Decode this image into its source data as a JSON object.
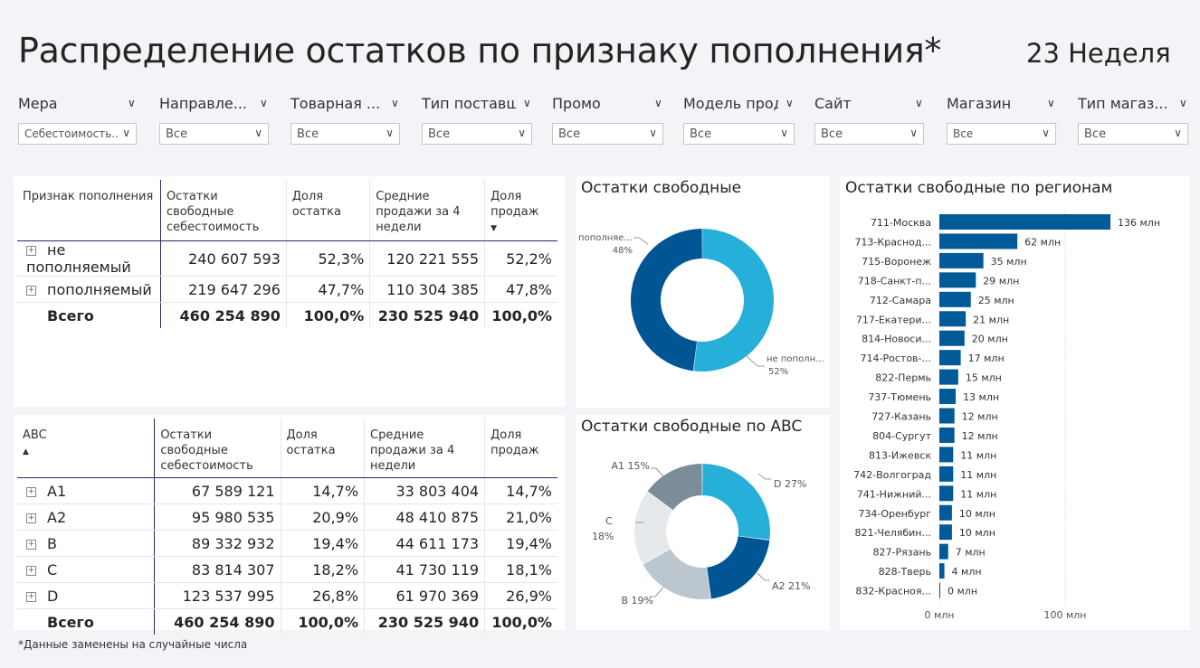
{
  "title": "Распределение остатков по признаку пополнения*",
  "week": "23 Неделя",
  "footnote": "*Данные заменены на случайные числа",
  "filters": [
    {
      "label": "Мера",
      "value": "Себестоимость..."
    },
    {
      "label": "Направле...",
      "value": "Все"
    },
    {
      "label": "Товарная ...",
      "value": "Все"
    },
    {
      "label": "Тип поставщ...",
      "value": "Все"
    },
    {
      "label": "Промо",
      "value": "Все"
    },
    {
      "label": "Модель прод...",
      "value": "Все"
    },
    {
      "label": "Сайт",
      "value": "Все"
    },
    {
      "label": "Магазин",
      "value": "Все"
    },
    {
      "label": "Тип магаз...",
      "value": "Все"
    }
  ],
  "table1": {
    "headers": [
      "Признак пополнения",
      "Остатки свободные себестоимость",
      "Доля остатка",
      "Средние продажи за 4 недели",
      "Доля продаж"
    ],
    "rows": [
      {
        "label": "не пополняемый",
        "ost": "240 607 593",
        "dost": "52,3%",
        "sp": "120 221 555",
        "dsp": "52,2%"
      },
      {
        "label": "пополняемый",
        "ost": "219 647 296",
        "dost": "47,7%",
        "sp": "110 304 385",
        "dsp": "47,8%"
      }
    ],
    "total": {
      "label": "Всего",
      "ost": "460 254 890",
      "dost": "100,0%",
      "sp": "230 525 940",
      "dsp": "100,0%"
    }
  },
  "table2": {
    "headers": [
      "ABC",
      "Остатки свободные себестоимость",
      "Доля остатка",
      "Средние продажи за 4 недели",
      "Доля продаж"
    ],
    "rows": [
      {
        "label": "A1",
        "ost": "67 589 121",
        "dost": "14,7%",
        "sp": "33 803 404",
        "dsp": "14,7%"
      },
      {
        "label": "A2",
        "ost": "95 980 535",
        "dost": "20,9%",
        "sp": "48 410 875",
        "dsp": "21,0%"
      },
      {
        "label": "B",
        "ost": "89 332 932",
        "dost": "19,4%",
        "sp": "44 611 173",
        "dsp": "19,4%"
      },
      {
        "label": "C",
        "ost": "83 814 307",
        "dost": "18,2%",
        "sp": "41 730 119",
        "dsp": "18,1%"
      },
      {
        "label": "D",
        "ost": "123 537 995",
        "dost": "26,8%",
        "sp": "61 970 369",
        "dsp": "26,9%"
      }
    ],
    "total": {
      "label": "Всего",
      "ost": "460 254 890",
      "dost": "100,0%",
      "sp": "230 525 940",
      "dsp": "100,0%"
    }
  },
  "colors": {
    "dark_blue": "#005694",
    "light_blue": "#26afd8",
    "slate": "#7a8d99",
    "light_grey": "#e6e9ec",
    "mid_grey": "#bcc6cf",
    "bar": "#005a97"
  },
  "chart_data": [
    {
      "type": "pie",
      "title": "Остатки свободные",
      "donut": true,
      "slices": [
        {
          "name": "не пополн...",
          "value": 52,
          "label": "52%",
          "color": "#26afd8"
        },
        {
          "name": "пополняе...",
          "value": 48,
          "label": "48%",
          "color": "#005694"
        }
      ]
    },
    {
      "type": "pie",
      "title": "Остатки свободные по ABC",
      "donut": true,
      "slices": [
        {
          "name": "D",
          "value": 27,
          "label": "D 27%",
          "color": "#26afd8"
        },
        {
          "name": "A2",
          "value": 21,
          "label": "A2 21%",
          "color": "#005694"
        },
        {
          "name": "B",
          "value": 19,
          "label": "B 19%",
          "color": "#bcc6cf"
        },
        {
          "name": "C",
          "value": 18,
          "label": "C\n18%",
          "color": "#e6e9ec"
        },
        {
          "name": "A1",
          "value": 15,
          "label": "A1 15%",
          "color": "#7a8d99"
        }
      ]
    },
    {
      "type": "bar",
      "orientation": "horizontal",
      "title": "Остатки свободные по регионам",
      "categories": [
        "711-Москва",
        "713-Краснод...",
        "715-Воронеж",
        "718-Санкт-п...",
        "712-Самара",
        "717-Екатери...",
        "814-Новоси...",
        "714-Ростов-...",
        "822-Пермь",
        "737-Тюмень",
        "727-Казань",
        "804-Сургут",
        "813-Ижевск",
        "742-Волгоград",
        "741-Нижний...",
        "734-Оренбург",
        "821-Челябин...",
        "827-Рязань",
        "828-Тверь",
        "832-Красноя..."
      ],
      "values": [
        136,
        62,
        35,
        29,
        25,
        21,
        20,
        17,
        15,
        13,
        12,
        12,
        11,
        11,
        11,
        10,
        10,
        7,
        4,
        0
      ],
      "data_labels": [
        "136 млн",
        "62 млн",
        "35 млн",
        "29 млн",
        "25 млн",
        "21 млн",
        "20 млн",
        "17 млн",
        "15 млн",
        "13 млн",
        "12 млн",
        "12 млн",
        "11 млн",
        "11 млн",
        "11 млн",
        "10 млн",
        "10 млн",
        "7 млн",
        "4 млн",
        "0 млн"
      ],
      "unit": "млн",
      "xticks": [
        "0 млн",
        "100 млн"
      ],
      "xtick_values": [
        0,
        100
      ],
      "xlim": [
        0,
        136
      ]
    }
  ]
}
